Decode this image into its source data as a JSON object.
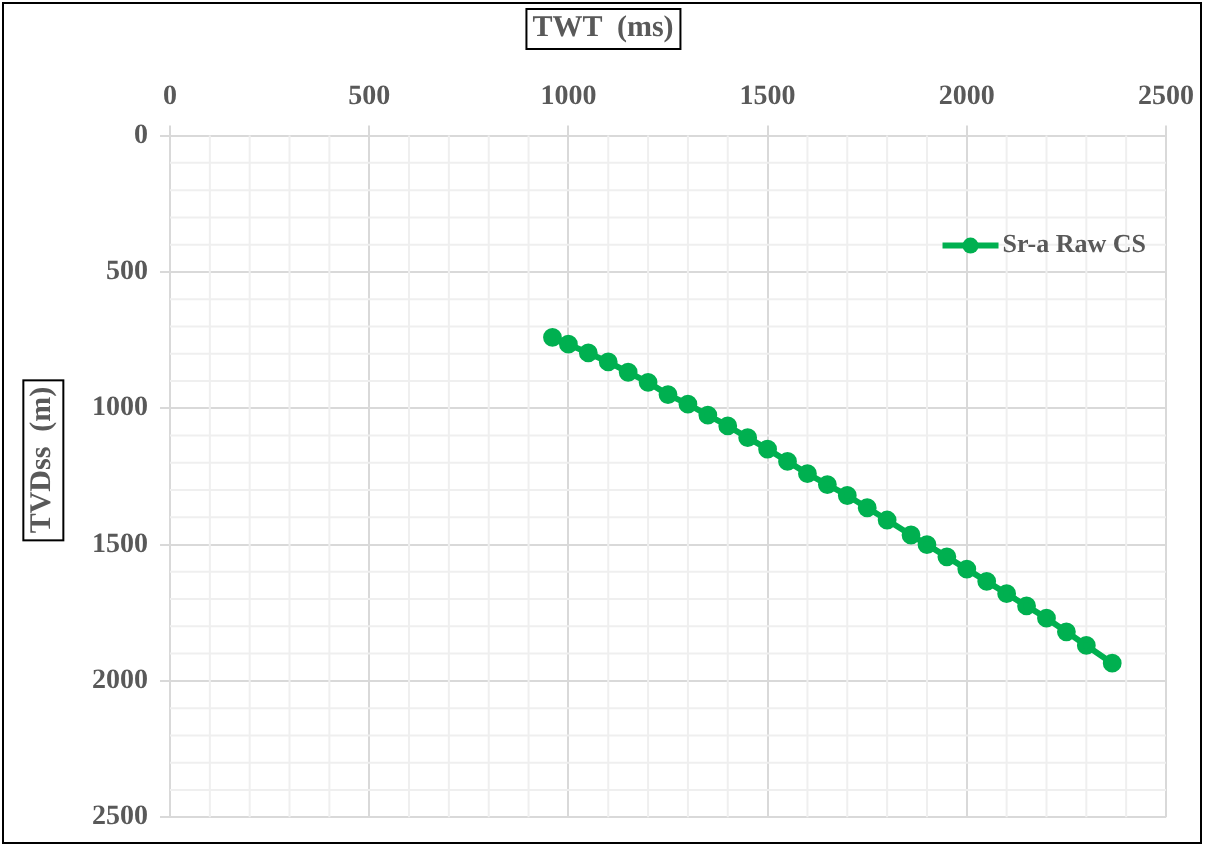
{
  "chart_data": {
    "type": "line",
    "xlabel": "TWT  (ms)",
    "ylabel": "TVDss  (m)",
    "xlim": [
      0,
      2500
    ],
    "xticks": [
      0,
      500,
      1000,
      1500,
      2000,
      2500
    ],
    "ylim": [
      2500,
      0
    ],
    "yticks": [
      0,
      500,
      1000,
      1500,
      2000,
      2500
    ],
    "grid": true,
    "legend": "top right",
    "marker": "circle",
    "line_style": "solid",
    "series": [
      {
        "name": "Sr-a Raw CS",
        "color": "#00b050",
        "x": [
          960,
          1000,
          1050,
          1100,
          1150,
          1200,
          1250,
          1300,
          1350,
          1400,
          1450,
          1500,
          1550,
          1600,
          1650,
          1700,
          1750,
          1800,
          1860,
          1900,
          1950,
          2000,
          2050,
          2100,
          2150,
          2200,
          2250,
          2300,
          2365
        ],
        "values": [
          740,
          765,
          797,
          830,
          868,
          905,
          950,
          985,
          1025,
          1065,
          1108,
          1150,
          1195,
          1240,
          1280,
          1320,
          1365,
          1410,
          1465,
          1500,
          1545,
          1590,
          1635,
          1680,
          1725,
          1770,
          1820,
          1870,
          1935
        ]
      }
    ]
  }
}
